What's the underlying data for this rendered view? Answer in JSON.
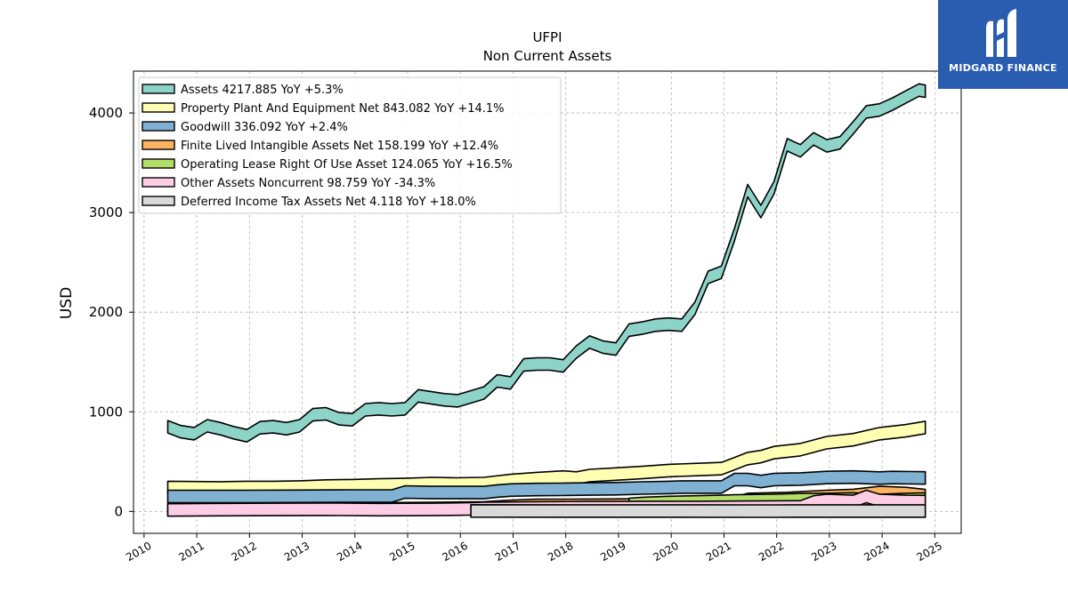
{
  "chart_data": {
    "type": "area",
    "title": "UFPI",
    "subtitle": "Non Current  Assets",
    "ylabel": "USD",
    "xlabel": "",
    "xlim": [
      2009.8,
      2025.5
    ],
    "ylim": [
      -220,
      4420
    ],
    "grid": true,
    "legend_position": "top-left",
    "x_ticks": [
      "2010",
      "2011",
      "2012",
      "2013",
      "2014",
      "2015",
      "2016",
      "2017",
      "2018",
      "2019",
      "2020",
      "2021",
      "2022",
      "2023",
      "2024",
      "2025"
    ],
    "y_ticks": [
      "0",
      "1000",
      "2000",
      "3000",
      "4000"
    ],
    "series": [
      {
        "name": "Assets",
        "legend": "Assets  4217.885 YoY +5.3%",
        "color": "#8dd3c7",
        "x": [
          2010.45,
          2010.7,
          2010.95,
          2011.2,
          2011.45,
          2011.7,
          2011.95,
          2012.2,
          2012.45,
          2012.7,
          2012.95,
          2013.2,
          2013.45,
          2013.7,
          2013.95,
          2014.2,
          2014.45,
          2014.7,
          2014.95,
          2015.2,
          2015.45,
          2015.7,
          2015.95,
          2016.2,
          2016.45,
          2016.7,
          2016.95,
          2017.2,
          2017.45,
          2017.7,
          2017.95,
          2018.2,
          2018.45,
          2018.7,
          2018.95,
          2019.2,
          2019.45,
          2019.7,
          2019.95,
          2020.2,
          2020.45,
          2020.7,
          2020.95,
          2021.2,
          2021.45,
          2021.7,
          2021.95,
          2022.2,
          2022.45,
          2022.7,
          2022.95,
          2023.2,
          2023.45,
          2023.7,
          2023.95,
          2024.2,
          2024.45,
          2024.7,
          2024.82
        ],
        "values": [
          850,
          800,
          780,
          860,
          830,
          790,
          760,
          840,
          850,
          830,
          860,
          970,
          980,
          930,
          920,
          1020,
          1030,
          1020,
          1030,
          1160,
          1140,
          1120,
          1110,
          1150,
          1190,
          1310,
          1290,
          1470,
          1480,
          1480,
          1460,
          1600,
          1700,
          1650,
          1630,
          1820,
          1840,
          1870,
          1880,
          1870,
          2040,
          2350,
          2400,
          2780,
          3220,
          3010,
          3250,
          3680,
          3620,
          3740,
          3670,
          3700,
          3850,
          4010,
          4030,
          4090,
          4160,
          4230,
          4218
        ]
      },
      {
        "name": "Property Plant And Equipment Net",
        "legend": "Property Plant And Equipment Net  843.082 YoY +14.1%",
        "color": "#ffffb3",
        "x": [
          2010.45,
          2010.95,
          2011.45,
          2011.95,
          2012.45,
          2012.95,
          2013.45,
          2013.95,
          2014.45,
          2014.95,
          2015.45,
          2015.95,
          2016.45,
          2016.95,
          2017.45,
          2017.95,
          2018.2,
          2018.45,
          2018.95,
          2019.45,
          2019.95,
          2020.45,
          2020.95,
          2021.2,
          2021.45,
          2021.7,
          2021.95,
          2022.45,
          2022.95,
          2023.45,
          2023.95,
          2024.45,
          2024.82
        ],
        "values": [
          240,
          238,
          236,
          240,
          240,
          245,
          255,
          258,
          265,
          270,
          280,
          275,
          280,
          310,
          330,
          345,
          335,
          360,
          375,
          390,
          410,
          420,
          430,
          480,
          530,
          550,
          590,
          620,
          690,
          720,
          780,
          810,
          843
        ]
      },
      {
        "name": "Goodwill",
        "legend": "Goodwill  336.092 YoY +2.4%",
        "color": "#80b1d3",
        "x": [
          2010.45,
          2010.95,
          2011.95,
          2012.95,
          2013.95,
          2014.7,
          2014.95,
          2015.45,
          2015.95,
          2016.45,
          2016.7,
          2016.95,
          2017.45,
          2017.95,
          2018.45,
          2018.95,
          2019.45,
          2019.95,
          2020.2,
          2020.95,
          2021.2,
          2021.45,
          2021.7,
          2021.95,
          2022.45,
          2022.95,
          2023.45,
          2023.95,
          2024.2,
          2024.82
        ],
        "values": [
          150,
          150,
          150,
          152,
          155,
          155,
          195,
          190,
          190,
          190,
          205,
          215,
          220,
          222,
          225,
          228,
          235,
          240,
          245,
          245,
          320,
          320,
          300,
          320,
          325,
          340,
          345,
          335,
          340,
          336
        ]
      },
      {
        "name": "Finite Lived Intangible Assets Net",
        "legend": "Finite Lived Intangible Assets Net  158.199 YoY +12.4%",
        "color": "#fdb462",
        "x": [
          2010.45,
          2011.95,
          2013.95,
          2015.45,
          2016.45,
          2016.95,
          2017.45,
          2018.45,
          2019.45,
          2020.45,
          2021.2,
          2021.45,
          2022.2,
          2022.95,
          2023.45,
          2023.95,
          2024.45,
          2024.82
        ],
        "values": [
          20,
          22,
          24,
          30,
          35,
          50,
          60,
          62,
          65,
          70,
          80,
          120,
          130,
          150,
          160,
          190,
          180,
          158
        ]
      },
      {
        "name": "Operating Lease Right Of Use Asset",
        "legend": "Operating Lease Right Of Use Asset  124.065 YoY +16.5%",
        "color": "#b3de69",
        "x": [
          2019.2,
          2019.45,
          2019.95,
          2020.45,
          2020.95,
          2021.2,
          2021.95,
          2022.45,
          2022.95,
          2023.45,
          2023.95,
          2024.45,
          2024.82
        ],
        "values": [
          70,
          80,
          90,
          95,
          100,
          105,
          110,
          118,
          120,
          125,
          110,
          120,
          124
        ]
      },
      {
        "name": "Other Assets Noncurrent",
        "legend": "Other Assets Noncurrent  98.759 YoY -34.3%",
        "color": "#fccde5",
        "x": [
          2010.45,
          2011.45,
          2012.45,
          2013.45,
          2014.45,
          2015.45,
          2016.2,
          2016.45,
          2017.45,
          2018.45,
          2019.45,
          2020.45,
          2021.45,
          2022.45,
          2022.7,
          2022.95,
          2023.45,
          2023.7,
          2023.95,
          2024.45,
          2024.82
        ],
        "values": [
          15,
          18,
          20,
          22,
          18,
          20,
          25,
          30,
          35,
          38,
          40,
          40,
          42,
          45,
          95,
          110,
          100,
          150,
          110,
          100,
          99
        ]
      },
      {
        "name": "Deferred Income Tax Assets Net",
        "legend": "Deferred Income Tax Assets Net  4.118 YoY +18.0%",
        "color": "#d9d9d9",
        "x": [
          2016.2,
          2017.95,
          2019.95,
          2021.95,
          2023.95,
          2024.82
        ],
        "values": [
          5,
          4,
          4,
          3,
          4,
          4
        ]
      }
    ]
  }
}
